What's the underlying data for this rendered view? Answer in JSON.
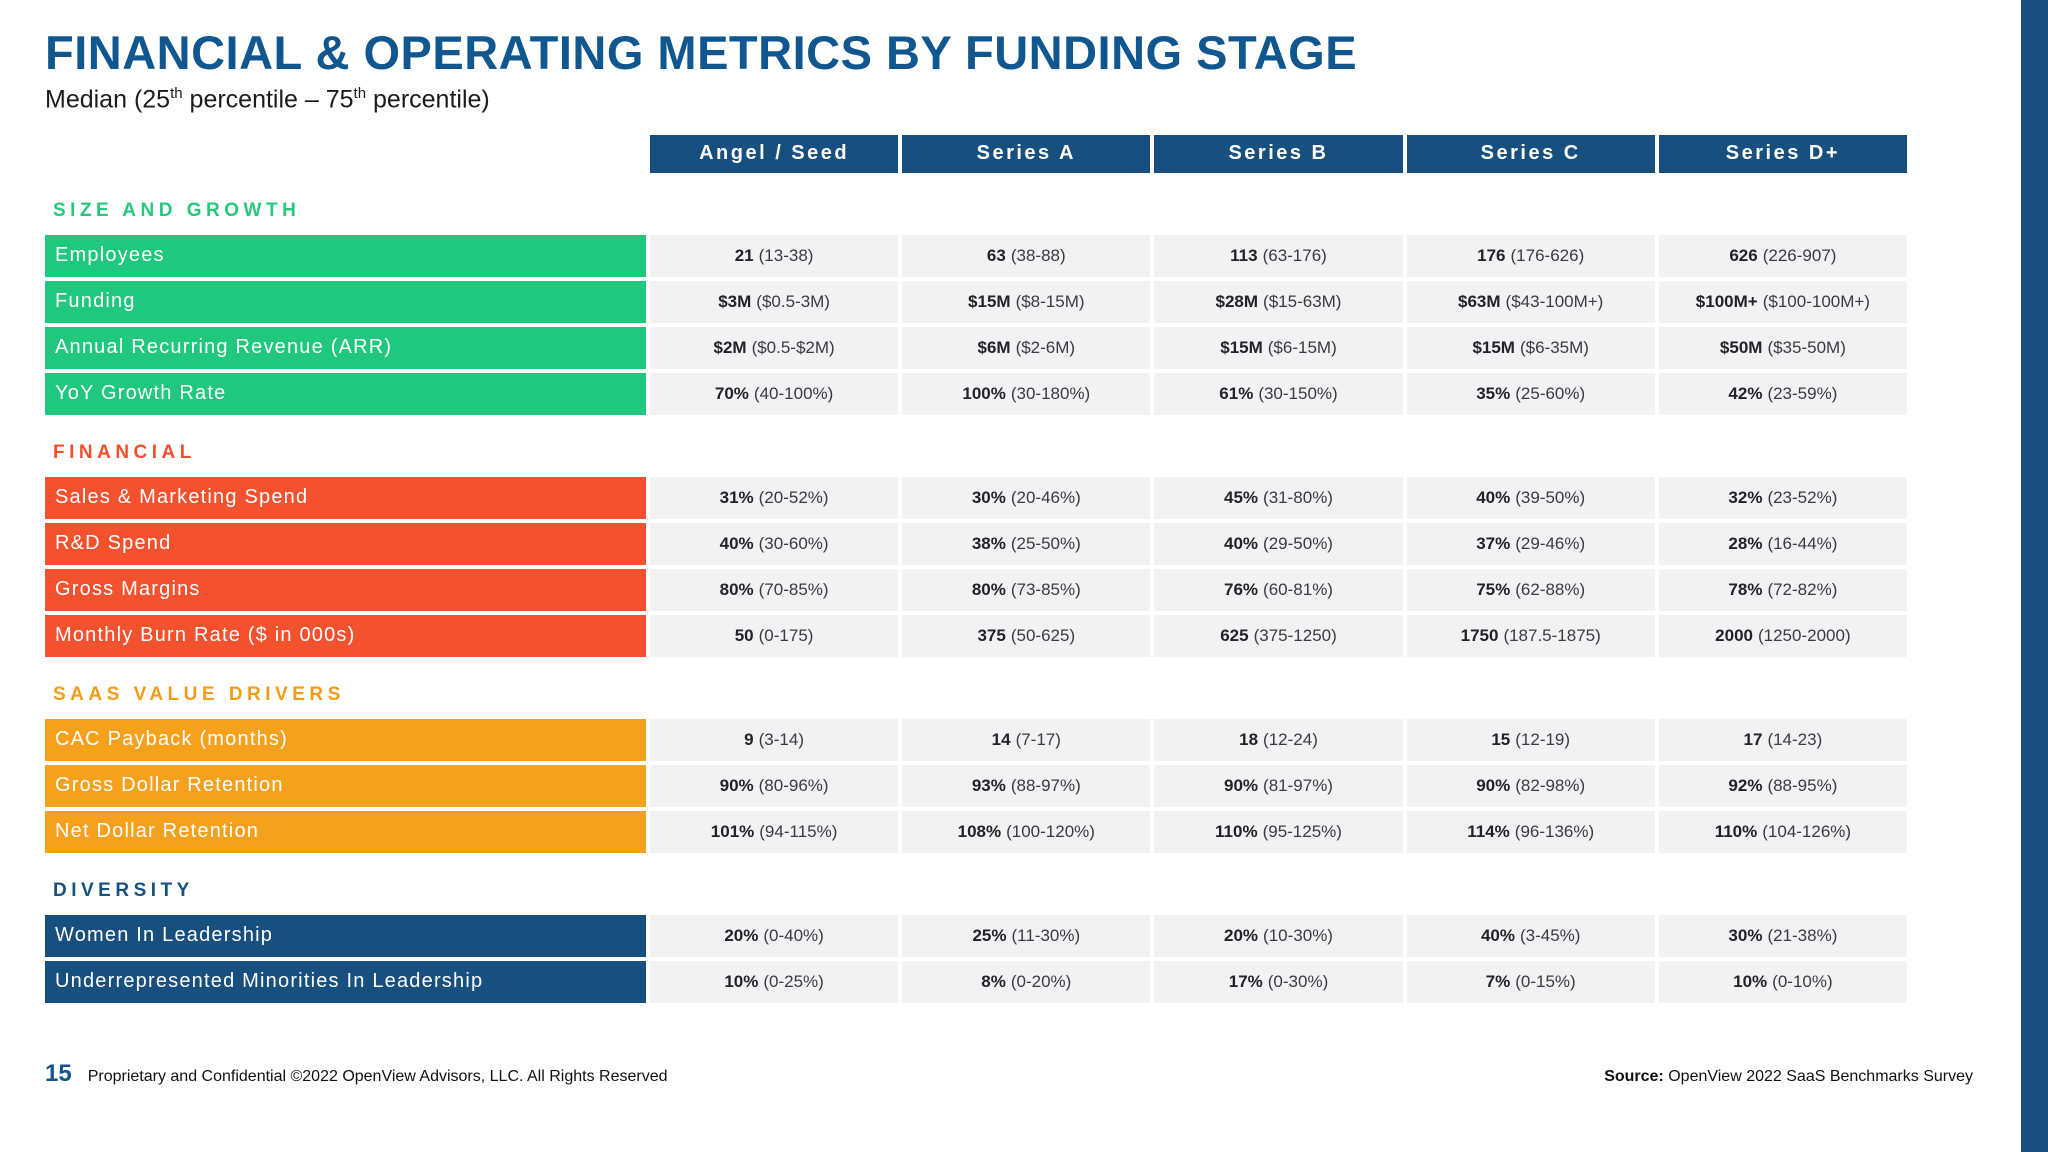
{
  "page": {
    "title": "FINANCIAL & OPERATING METRICS BY FUNDING STAGE",
    "subtitle": {
      "p1": "Median (25",
      "sup1": "th",
      "p2": " percentile – 75",
      "sup2": "th",
      "p3": " percentile)"
    }
  },
  "colors": {
    "navy": "#17507f",
    "title_blue": "#10568f",
    "green": "#1fc87c",
    "green_text": "#26c87e",
    "red_orange": "#f4512f",
    "red_orange_text": "#f4502e",
    "orange": "#f6a11d",
    "orange_text": "#f39c15",
    "cell_bg": "#f2f1f3"
  },
  "columns": [
    "Angel / Seed",
    "Series A",
    "Series B",
    "Series C",
    "Series D+"
  ],
  "sections": [
    {
      "title": "SIZE AND GROWTH",
      "bar_color": "#1fc87c",
      "title_color": "#26c87e",
      "rows": [
        {
          "label": "Employees",
          "cells": [
            {
              "m": "21",
              "r": "(13-38)"
            },
            {
              "m": "63",
              "r": "(38-88)"
            },
            {
              "m": "113",
              "r": "(63-176)"
            },
            {
              "m": "176",
              "r": "(176-626)"
            },
            {
              "m": "626",
              "r": "(226-907)"
            }
          ]
        },
        {
          "label": "Funding",
          "cells": [
            {
              "m": "$3M",
              "r": "($0.5-3M)"
            },
            {
              "m": "$15M",
              "r": "($8-15M)"
            },
            {
              "m": "$28M",
              "r": "($15-63M)"
            },
            {
              "m": "$63M",
              "r": "($43-100M+)"
            },
            {
              "m": "$100M+",
              "r": "($100-100M+)"
            }
          ]
        },
        {
          "label": "Annual Recurring Revenue (ARR)",
          "cells": [
            {
              "m": "$2M",
              "r": "($0.5-$2M)"
            },
            {
              "m": "$6M",
              "r": "($2-6M)"
            },
            {
              "m": "$15M",
              "r": "($6-15M)"
            },
            {
              "m": "$15M",
              "r": "($6-35M)"
            },
            {
              "m": "$50M",
              "r": "($35-50M)"
            }
          ]
        },
        {
          "label": "YoY Growth Rate",
          "cells": [
            {
              "m": "70%",
              "r": "(40-100%)"
            },
            {
              "m": "100%",
              "r": "(30-180%)"
            },
            {
              "m": "61%",
              "r": "(30-150%)"
            },
            {
              "m": "35%",
              "r": "(25-60%)"
            },
            {
              "m": "42%",
              "r": "(23-59%)"
            }
          ]
        }
      ]
    },
    {
      "title": "FINANCIAL",
      "bar_color": "#f4512f",
      "title_color": "#f4502e",
      "rows": [
        {
          "label": "Sales & Marketing Spend",
          "cells": [
            {
              "m": "31%",
              "r": "(20-52%)"
            },
            {
              "m": "30%",
              "r": "(20-46%)"
            },
            {
              "m": "45%",
              "r": "(31-80%)"
            },
            {
              "m": "40%",
              "r": "(39-50%)"
            },
            {
              "m": "32%",
              "r": "(23-52%)"
            }
          ]
        },
        {
          "label": "R&D Spend",
          "cells": [
            {
              "m": "40%",
              "r": "(30-60%)"
            },
            {
              "m": "38%",
              "r": "(25-50%)"
            },
            {
              "m": "40%",
              "r": "(29-50%)"
            },
            {
              "m": "37%",
              "r": "(29-46%)"
            },
            {
              "m": "28%",
              "r": "(16-44%)"
            }
          ]
        },
        {
          "label": "Gross Margins",
          "cells": [
            {
              "m": "80%",
              "r": "(70-85%)"
            },
            {
              "m": "80%",
              "r": "(73-85%)"
            },
            {
              "m": "76%",
              "r": "(60-81%)"
            },
            {
              "m": "75%",
              "r": "(62-88%)"
            },
            {
              "m": "78%",
              "r": "(72-82%)"
            }
          ]
        },
        {
          "label": "Monthly Burn Rate ($ in 000s)",
          "cells": [
            {
              "m": "50",
              "r": "(0-175)"
            },
            {
              "m": "375",
              "r": "(50-625)"
            },
            {
              "m": "625",
              "r": "(375-1250)"
            },
            {
              "m": "1750",
              "r": "(187.5-1875)"
            },
            {
              "m": "2000",
              "r": "(1250-2000)"
            }
          ]
        }
      ]
    },
    {
      "title": "SAAS VALUE DRIVERS",
      "bar_color": "#f6a11d",
      "title_color": "#f39c15",
      "rows": [
        {
          "label": "CAC Payback (months)",
          "cells": [
            {
              "m": "9",
              "r": "(3-14)"
            },
            {
              "m": "14",
              "r": "(7-17)"
            },
            {
              "m": "18",
              "r": "(12-24)"
            },
            {
              "m": "15",
              "r": "(12-19)"
            },
            {
              "m": "17",
              "r": "(14-23)"
            }
          ]
        },
        {
          "label": "Gross Dollar Retention",
          "cells": [
            {
              "m": "90%",
              "r": "(80-96%)"
            },
            {
              "m": "93%",
              "r": "(88-97%)"
            },
            {
              "m": "90%",
              "r": "(81-97%)"
            },
            {
              "m": "90%",
              "r": "(82-98%)"
            },
            {
              "m": "92%",
              "r": "(88-95%)"
            }
          ]
        },
        {
          "label": "Net Dollar Retention",
          "cells": [
            {
              "m": "101%",
              "r": "(94-115%)"
            },
            {
              "m": "108%",
              "r": "(100-120%)"
            },
            {
              "m": "110%",
              "r": "(95-125%)"
            },
            {
              "m": "114%",
              "r": "(96-136%)"
            },
            {
              "m": "110%",
              "r": "(104-126%)"
            }
          ]
        }
      ]
    },
    {
      "title": "DIVERSITY",
      "bar_color": "#17507f",
      "title_color": "#17507f",
      "rows": [
        {
          "label": "Women In Leadership",
          "cells": [
            {
              "m": "20%",
              "r": "(0-40%)"
            },
            {
              "m": "25%",
              "r": "(11-30%)"
            },
            {
              "m": "20%",
              "r": "(10-30%)"
            },
            {
              "m": "40%",
              "r": "(3-45%)"
            },
            {
              "m": "30%",
              "r": "(21-38%)"
            }
          ]
        },
        {
          "label": "Underrepresented Minorities In Leadership",
          "cells": [
            {
              "m": "10%",
              "r": "(0-25%)"
            },
            {
              "m": "8%",
              "r": "(0-20%)"
            },
            {
              "m": "17%",
              "r": "(0-30%)"
            },
            {
              "m": "7%",
              "r": "(0-15%)"
            },
            {
              "m": "10%",
              "r": "(0-10%)"
            }
          ]
        }
      ]
    }
  ],
  "footer": {
    "page_number": "15",
    "note": "Proprietary and Confidential ©2022 OpenView Advisors, LLC. All Rights Reserved",
    "source_label": "Source:",
    "source_text": " OpenView 2022 SaaS Benchmarks Survey"
  }
}
